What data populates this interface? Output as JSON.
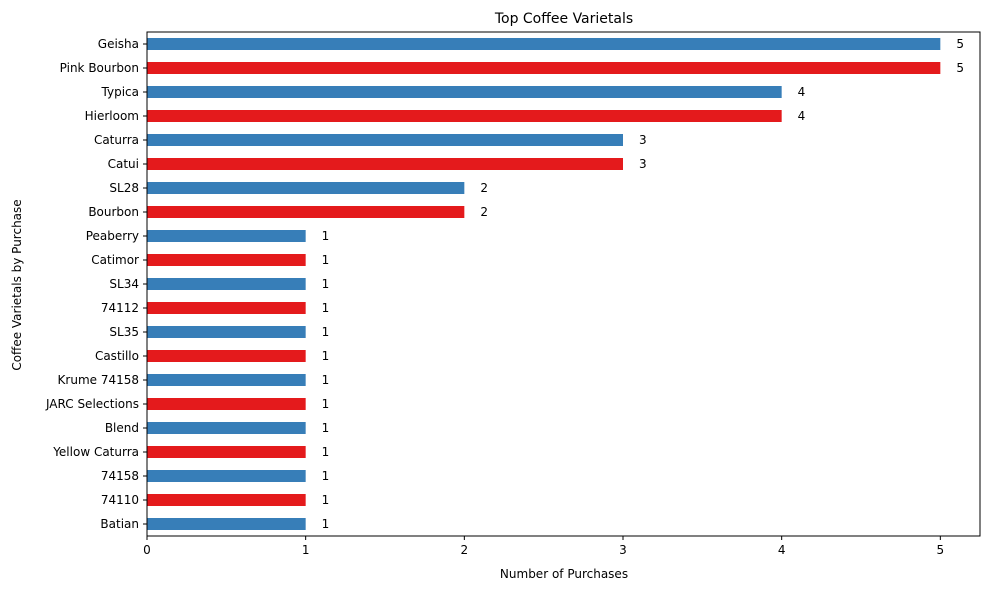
{
  "chart_data": {
    "type": "bar",
    "orientation": "horizontal",
    "title": "Top Coffee Varietals",
    "xlabel": "Number of Purchases",
    "ylabel": "Coffee Varietals by Purchase",
    "xlim": [
      0,
      5.25
    ],
    "xticks": [
      "0",
      "1",
      "2",
      "3",
      "4",
      "5"
    ],
    "grid": false,
    "colors": [
      "#377eb8",
      "#e41a1c"
    ],
    "categories": [
      "Geisha",
      "Pink Bourbon",
      "Typica",
      "Hierloom",
      "Caturra",
      "Catui",
      "SL28",
      "Bourbon",
      "Peaberry",
      "Catimor",
      "SL34",
      "74112",
      "SL35",
      "Castillo",
      "Krume 74158",
      "JARC Selections",
      "Blend",
      "Yellow Caturra",
      "74158",
      "74110",
      "Batian"
    ],
    "values": [
      5,
      5,
      4,
      4,
      3,
      3,
      2,
      2,
      1,
      1,
      1,
      1,
      1,
      1,
      1,
      1,
      1,
      1,
      1,
      1,
      1
    ],
    "data_labels": [
      "5",
      "5",
      "4",
      "4",
      "3",
      "3",
      "2",
      "2",
      "1",
      "1",
      "1",
      "1",
      "1",
      "1",
      "1",
      "1",
      "1",
      "1",
      "1",
      "1",
      "1"
    ]
  }
}
